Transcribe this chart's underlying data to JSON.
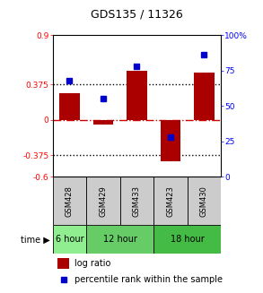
{
  "title": "GDS135 / 11326",
  "samples": [
    "GSM428",
    "GSM429",
    "GSM433",
    "GSM423",
    "GSM430"
  ],
  "log_ratios": [
    0.28,
    -0.05,
    0.52,
    -0.44,
    0.5
  ],
  "percentile_ranks": [
    68,
    55,
    78,
    28,
    86
  ],
  "time_groups": [
    {
      "label": "6 hour",
      "start": 0,
      "end": 1
    },
    {
      "label": "12 hour",
      "start": 1,
      "end": 3
    },
    {
      "label": "18 hour",
      "start": 3,
      "end": 5
    }
  ],
  "time_colors": [
    "#90EE90",
    "#66CC66",
    "#44BB44"
  ],
  "ylim_left": [
    -0.6,
    0.9
  ],
  "ylim_right": [
    0,
    100
  ],
  "yticks_left": [
    -0.6,
    -0.375,
    0,
    0.375,
    0.9
  ],
  "ytick_labels_left": [
    "-0.6",
    "-0.375",
    "0",
    "0.375",
    "0.9"
  ],
  "yticks_right": [
    0,
    25,
    50,
    75,
    100
  ],
  "ytick_labels_right": [
    "0",
    "25",
    "50",
    "75",
    "100%"
  ],
  "hlines": [
    0.375,
    -0.375
  ],
  "bar_color": "#AA0000",
  "dot_color": "#0000CC",
  "zero_line_color": "#CC0000",
  "bg_color": "#FFFFFF",
  "sample_bg": "#CCCCCC",
  "bar_width": 0.6
}
